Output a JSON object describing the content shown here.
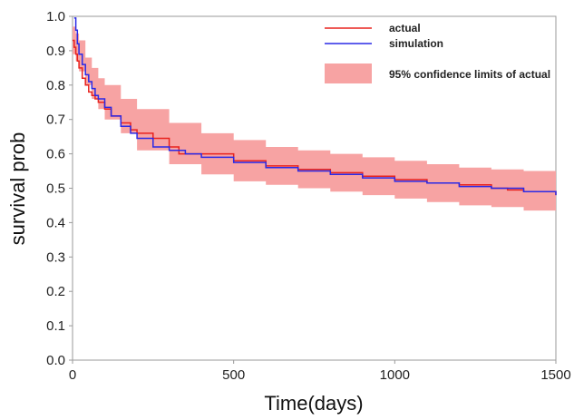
{
  "chart_data": {
    "type": "line",
    "title": "",
    "xlabel": "Time(days)",
    "ylabel": "survival prob",
    "xlim": [
      0,
      1500
    ],
    "ylim": [
      0.0,
      1.0
    ],
    "xticks": [
      0,
      500,
      1000,
      1500
    ],
    "yticks": [
      0.0,
      0.1,
      0.2,
      0.3,
      0.4,
      0.5,
      0.6,
      0.7,
      0.8,
      0.9,
      1.0
    ],
    "xtick_labels": [
      "0",
      "500",
      "1000",
      "1500"
    ],
    "ytick_labels": [
      "0.0",
      "0.1",
      "0.2",
      "0.3",
      "0.4",
      "0.5",
      "0.6",
      "0.7",
      "0.8",
      "0.9",
      "1.0"
    ],
    "grid": false,
    "legend_position": "top-right",
    "series": [
      {
        "name": "actual",
        "color": "#e8231e",
        "style": "step",
        "x": [
          0,
          5,
          10,
          15,
          20,
          30,
          40,
          50,
          60,
          70,
          80,
          100,
          120,
          150,
          180,
          200,
          250,
          300,
          330,
          400,
          500,
          600,
          700,
          800,
          900,
          1000,
          1100,
          1200,
          1300,
          1350,
          1400,
          1500
        ],
        "y": [
          0.93,
          0.91,
          0.89,
          0.87,
          0.85,
          0.82,
          0.8,
          0.78,
          0.77,
          0.76,
          0.75,
          0.73,
          0.71,
          0.69,
          0.67,
          0.66,
          0.645,
          0.62,
          0.6,
          0.6,
          0.58,
          0.565,
          0.555,
          0.545,
          0.535,
          0.525,
          0.515,
          0.51,
          0.5,
          0.495,
          0.49,
          0.48
        ]
      },
      {
        "name": "simulation",
        "color": "#2a2ae6",
        "style": "step",
        "x": [
          5,
          10,
          15,
          20,
          30,
          40,
          50,
          60,
          70,
          80,
          100,
          120,
          150,
          180,
          200,
          250,
          300,
          350,
          400,
          500,
          600,
          700,
          800,
          900,
          1000,
          1100,
          1200,
          1300,
          1400,
          1500
        ],
        "y": [
          0.995,
          0.96,
          0.92,
          0.89,
          0.86,
          0.83,
          0.81,
          0.79,
          0.77,
          0.76,
          0.735,
          0.71,
          0.68,
          0.66,
          0.645,
          0.62,
          0.61,
          0.6,
          0.59,
          0.575,
          0.56,
          0.55,
          0.54,
          0.53,
          0.52,
          0.515,
          0.505,
          0.5,
          0.49,
          0.48
        ]
      }
    ],
    "band": {
      "name": "95% confidence limits of actual",
      "color": "#f7a3a3",
      "x": [
        0,
        10,
        20,
        40,
        60,
        80,
        100,
        150,
        200,
        300,
        400,
        500,
        600,
        700,
        800,
        900,
        1000,
        1100,
        1200,
        1300,
        1400,
        1500
      ],
      "upper": [
        0.97,
        0.95,
        0.93,
        0.88,
        0.85,
        0.82,
        0.8,
        0.76,
        0.73,
        0.69,
        0.66,
        0.64,
        0.62,
        0.61,
        0.6,
        0.59,
        0.58,
        0.57,
        0.56,
        0.555,
        0.55,
        0.54
      ],
      "lower": [
        0.89,
        0.87,
        0.84,
        0.8,
        0.76,
        0.73,
        0.7,
        0.66,
        0.61,
        0.57,
        0.54,
        0.52,
        0.51,
        0.5,
        0.49,
        0.48,
        0.47,
        0.46,
        0.45,
        0.445,
        0.435,
        0.425
      ]
    }
  }
}
